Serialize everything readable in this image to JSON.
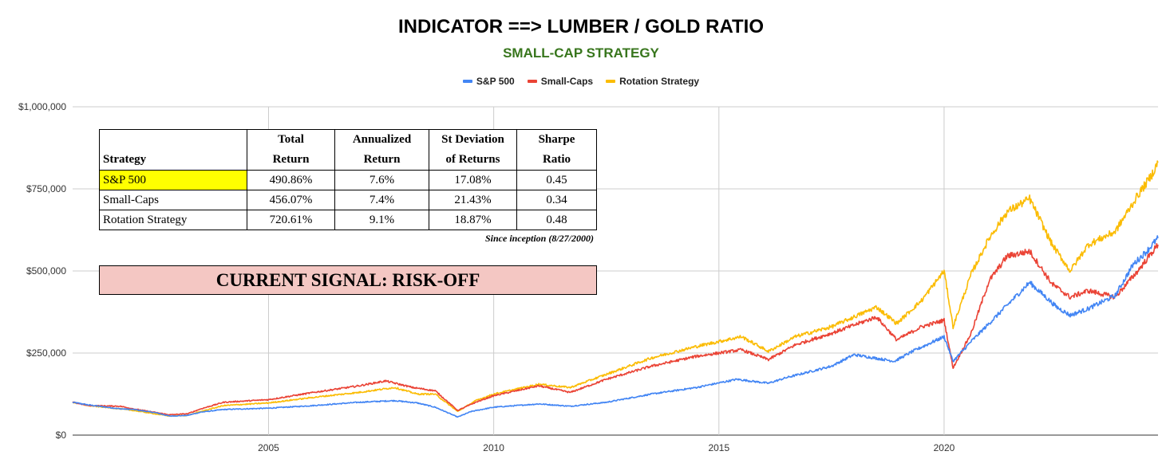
{
  "chart_data": {
    "type": "line",
    "title": "INDICATOR ==> LUMBER / GOLD RATIO",
    "subtitle": "SMALL-CAP STRATEGY",
    "xlim": [
      2000.65,
      2024.75
    ],
    "ylim": [
      0,
      1000000
    ],
    "xticks": [
      2005,
      2010,
      2015,
      2020
    ],
    "yticks": [
      0,
      250000,
      500000,
      750000,
      1000000
    ],
    "ytick_labels": [
      "$0",
      "$250,000",
      "$500,000",
      "$750,000",
      "$1,000,000"
    ],
    "grid": true,
    "legend_position": "top-center",
    "series": [
      {
        "name": "S&P 500",
        "color": "#4285f4",
        "points": [
          [
            2000.65,
            100000
          ],
          [
            2001.0,
            92000
          ],
          [
            2001.7,
            80000
          ],
          [
            2002.0,
            78000
          ],
          [
            2002.5,
            68000
          ],
          [
            2002.8,
            58000
          ],
          [
            2003.2,
            60000
          ],
          [
            2003.5,
            70000
          ],
          [
            2004.0,
            78000
          ],
          [
            2005.0,
            82000
          ],
          [
            2006.0,
            90000
          ],
          [
            2007.0,
            100000
          ],
          [
            2007.8,
            105000
          ],
          [
            2008.3,
            98000
          ],
          [
            2008.7,
            85000
          ],
          [
            2009.2,
            55000
          ],
          [
            2009.5,
            72000
          ],
          [
            2010.0,
            85000
          ],
          [
            2011.0,
            95000
          ],
          [
            2011.7,
            88000
          ],
          [
            2012.5,
            100000
          ],
          [
            2013.5,
            125000
          ],
          [
            2014.5,
            145000
          ],
          [
            2015.4,
            170000
          ],
          [
            2016.1,
            158000
          ],
          [
            2016.5,
            175000
          ],
          [
            2017.5,
            210000
          ],
          [
            2018.0,
            245000
          ],
          [
            2018.9,
            225000
          ],
          [
            2019.3,
            255000
          ],
          [
            2020.0,
            300000
          ],
          [
            2020.2,
            225000
          ],
          [
            2020.6,
            285000
          ],
          [
            2021.0,
            340000
          ],
          [
            2021.9,
            465000
          ],
          [
            2022.5,
            390000
          ],
          [
            2022.8,
            365000
          ],
          [
            2023.2,
            385000
          ],
          [
            2023.8,
            425000
          ],
          [
            2024.2,
            520000
          ],
          [
            2024.5,
            560000
          ],
          [
            2024.75,
            600000
          ]
        ]
      },
      {
        "name": "Small-Caps",
        "color": "#ea4335",
        "points": [
          [
            2000.65,
            100000
          ],
          [
            2001.0,
            90000
          ],
          [
            2001.7,
            88000
          ],
          [
            2002.0,
            80000
          ],
          [
            2002.8,
            62000
          ],
          [
            2003.2,
            65000
          ],
          [
            2003.5,
            80000
          ],
          [
            2004.0,
            100000
          ],
          [
            2005.0,
            108000
          ],
          [
            2006.0,
            130000
          ],
          [
            2007.0,
            150000
          ],
          [
            2007.6,
            165000
          ],
          [
            2008.2,
            145000
          ],
          [
            2008.7,
            135000
          ],
          [
            2009.2,
            75000
          ],
          [
            2009.6,
            100000
          ],
          [
            2010.0,
            120000
          ],
          [
            2011.0,
            150000
          ],
          [
            2011.7,
            130000
          ],
          [
            2012.5,
            170000
          ],
          [
            2013.5,
            210000
          ],
          [
            2014.5,
            240000
          ],
          [
            2015.5,
            260000
          ],
          [
            2016.1,
            230000
          ],
          [
            2016.7,
            275000
          ],
          [
            2017.5,
            310000
          ],
          [
            2018.5,
            360000
          ],
          [
            2018.95,
            290000
          ],
          [
            2019.5,
            330000
          ],
          [
            2020.0,
            350000
          ],
          [
            2020.2,
            205000
          ],
          [
            2020.6,
            310000
          ],
          [
            2021.0,
            470000
          ],
          [
            2021.4,
            545000
          ],
          [
            2021.9,
            560000
          ],
          [
            2022.4,
            460000
          ],
          [
            2022.8,
            420000
          ],
          [
            2023.2,
            440000
          ],
          [
            2023.8,
            420000
          ],
          [
            2024.3,
            500000
          ],
          [
            2024.75,
            580000
          ]
        ]
      },
      {
        "name": "Rotation Strategy",
        "color": "#fbbc04",
        "points": [
          [
            2000.65,
            100000
          ],
          [
            2001.0,
            90000
          ],
          [
            2001.7,
            80000
          ],
          [
            2002.0,
            75000
          ],
          [
            2002.8,
            58000
          ],
          [
            2003.2,
            60000
          ],
          [
            2003.5,
            72000
          ],
          [
            2004.0,
            90000
          ],
          [
            2005.0,
            98000
          ],
          [
            2006.0,
            115000
          ],
          [
            2007.0,
            130000
          ],
          [
            2007.8,
            145000
          ],
          [
            2008.3,
            125000
          ],
          [
            2008.7,
            125000
          ],
          [
            2009.2,
            72000
          ],
          [
            2009.6,
            105000
          ],
          [
            2010.0,
            125000
          ],
          [
            2011.0,
            155000
          ],
          [
            2011.7,
            145000
          ],
          [
            2012.5,
            185000
          ],
          [
            2013.5,
            235000
          ],
          [
            2014.5,
            270000
          ],
          [
            2015.5,
            300000
          ],
          [
            2016.1,
            255000
          ],
          [
            2016.7,
            300000
          ],
          [
            2017.5,
            330000
          ],
          [
            2018.5,
            390000
          ],
          [
            2018.95,
            340000
          ],
          [
            2019.5,
            410000
          ],
          [
            2020.0,
            500000
          ],
          [
            2020.2,
            330000
          ],
          [
            2020.6,
            490000
          ],
          [
            2021.0,
            600000
          ],
          [
            2021.4,
            680000
          ],
          [
            2021.9,
            720000
          ],
          [
            2022.4,
            580000
          ],
          [
            2022.8,
            500000
          ],
          [
            2023.2,
            580000
          ],
          [
            2023.8,
            620000
          ],
          [
            2024.3,
            730000
          ],
          [
            2024.6,
            790000
          ],
          [
            2024.75,
            830000
          ]
        ]
      }
    ]
  },
  "stats_table": {
    "headers": [
      {
        "line1": "",
        "line2": "Strategy"
      },
      {
        "line1": "Total",
        "line2": "Return"
      },
      {
        "line1": "Annualized",
        "line2": "Return"
      },
      {
        "line1": "St Deviation",
        "line2": "of Returns"
      },
      {
        "line1": "Sharpe",
        "line2": "Ratio"
      }
    ],
    "rows": [
      [
        "S&P 500",
        "490.86%",
        "7.6%",
        "17.08%",
        "0.45"
      ],
      [
        "Small-Caps",
        "456.07%",
        "7.4%",
        "21.43%",
        "0.34"
      ],
      [
        "Rotation Strategy",
        "720.61%",
        "9.1%",
        "18.87%",
        "0.48"
      ]
    ],
    "highlight_color": "#ffff00",
    "since_note": "Since inception (8/27/2000)"
  },
  "signal": {
    "text": "CURRENT SIGNAL: RISK-OFF",
    "background": "#f4c7c3"
  },
  "colors": {
    "subtitle": "#38761d",
    "grid": "#cccccc",
    "axis_text": "#333333"
  }
}
